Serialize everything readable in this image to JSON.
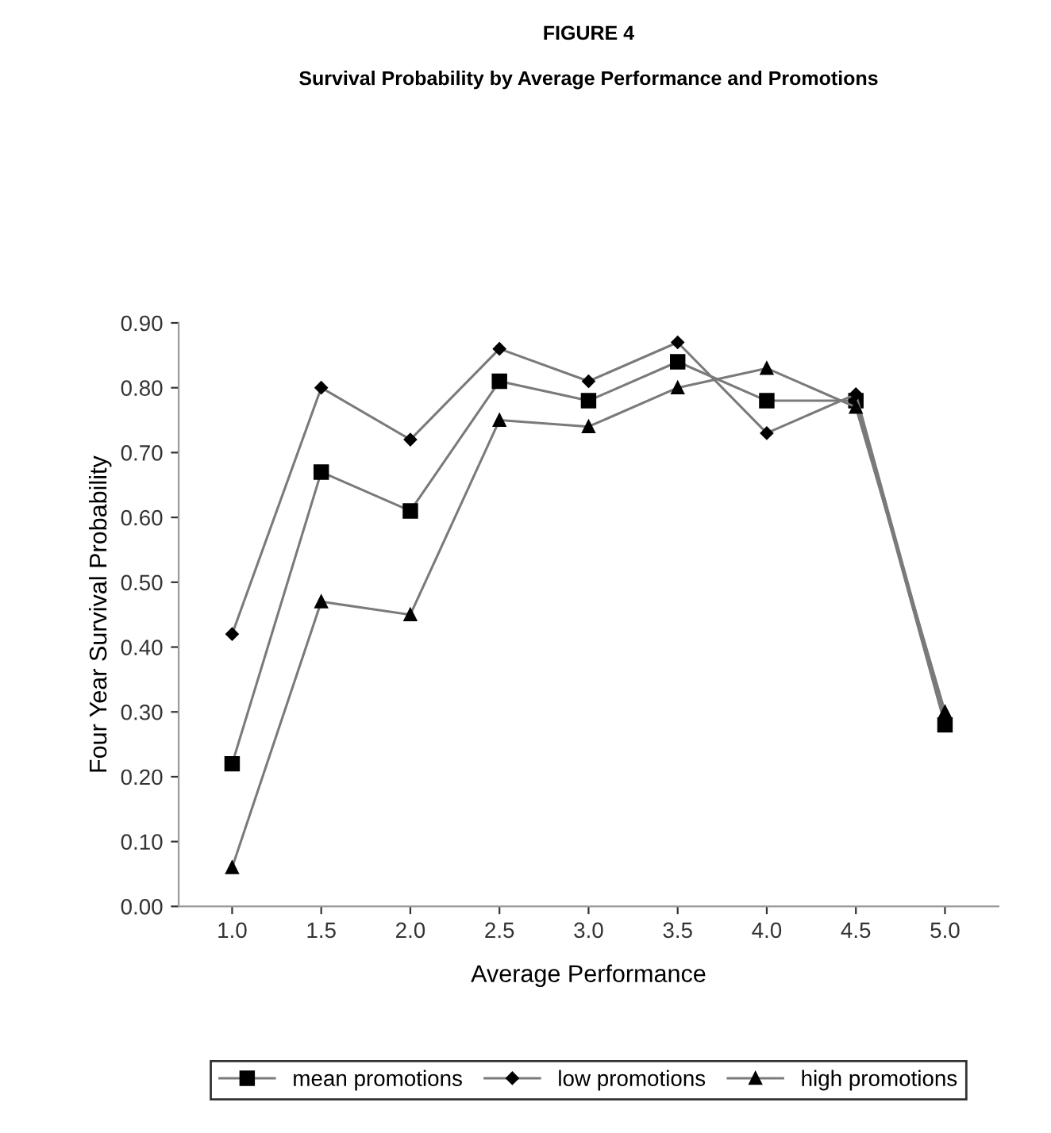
{
  "chart_data": {
    "type": "line",
    "title": "FIGURE 4",
    "subtitle": "Survival Probability by Average Performance and Promotions",
    "xlabel": "Average Performance",
    "ylabel": "Four Year Survival Probability",
    "categories": [
      "1.0",
      "1.5",
      "2.0",
      "2.5",
      "3.0",
      "3.5",
      "4.0",
      "4.5",
      "5.0"
    ],
    "series": [
      {
        "name": "mean promotions",
        "color": "#000000",
        "marker": "square",
        "values": [
          0.22,
          0.67,
          0.61,
          0.81,
          0.78,
          0.84,
          0.78,
          0.78,
          0.28
        ]
      },
      {
        "name": "low promotions",
        "color": "#000000",
        "marker": "diamond",
        "values": [
          0.42,
          0.8,
          0.72,
          0.86,
          0.81,
          0.87,
          0.73,
          0.79,
          0.29
        ]
      },
      {
        "name": "high promotions",
        "color": "#000000",
        "marker": "triangle",
        "values": [
          0.06,
          0.47,
          0.45,
          0.75,
          0.74,
          0.8,
          0.83,
          0.77,
          0.3
        ]
      }
    ],
    "ylim": [
      0,
      0.9
    ],
    "yticks": [
      {
        "value": 0,
        "label": "0.00"
      },
      {
        "value": 0.1,
        "label": "0.10"
      },
      {
        "value": 0.2,
        "label": "0.20"
      },
      {
        "value": 0.3,
        "label": "0.30"
      },
      {
        "value": 0.4,
        "label": "0.40"
      },
      {
        "value": 0.5,
        "label": "0.50"
      },
      {
        "value": 0.6,
        "label": "0.60"
      },
      {
        "value": 0.7,
        "label": "0.70"
      },
      {
        "value": 0.8,
        "label": "0.80"
      },
      {
        "value": 0.9,
        "label": "0.90"
      }
    ],
    "grid": false,
    "legend": "bottom",
    "line_style": "solid"
  }
}
